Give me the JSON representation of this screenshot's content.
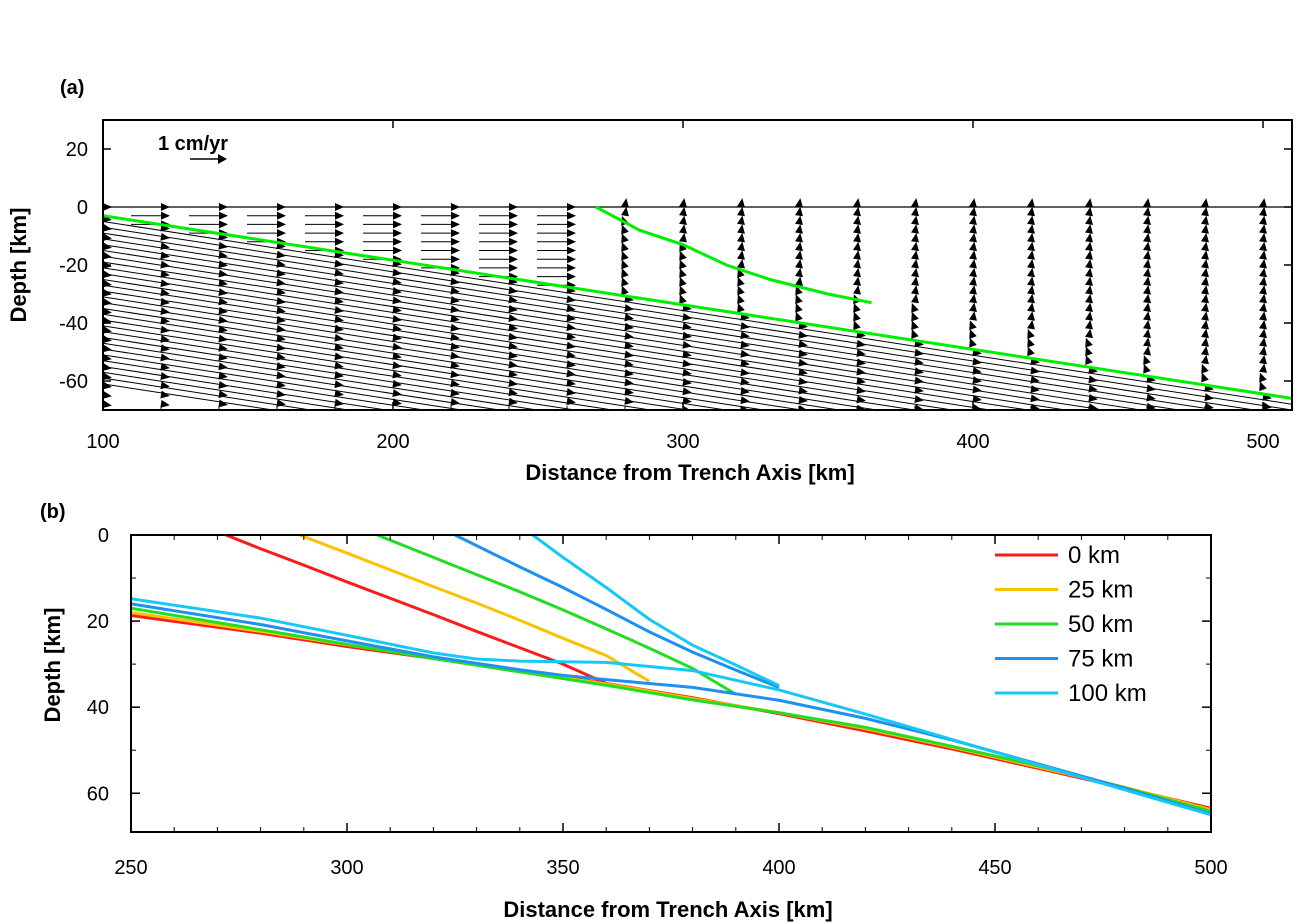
{
  "chart_data": [
    {
      "panel": "(a)",
      "type": "vector-field",
      "xlabel": "Distance from Trench Axis [km]",
      "ylabel": "Depth [km]",
      "xlim": [
        100,
        510
      ],
      "ylim": [
        -70,
        30
      ],
      "xticks": [
        100,
        200,
        300,
        400,
        500
      ],
      "yticks": [
        20,
        0,
        -20,
        -40,
        -60
      ],
      "grid": false,
      "reference_arrow": {
        "label": "1 cm/yr",
        "length_cm_per_yr": 1
      },
      "surface_line_depth": 0,
      "slab_surface": {
        "color": "#00ee00",
        "x": [
          100,
          510
        ],
        "y": [
          -3,
          -66
        ]
      },
      "wedge_boundary": {
        "color": "#00ee00",
        "x": [
          270,
          285,
          300,
          315,
          330,
          350,
          365
        ],
        "y": [
          0,
          -8,
          -13,
          -20,
          -25,
          -30,
          -33
        ]
      },
      "arrow_columns_x": [
        100,
        120,
        140,
        160,
        180,
        200,
        220,
        240,
        260,
        280,
        300,
        320,
        340,
        360,
        380,
        400,
        420,
        440,
        460,
        480,
        500
      ],
      "arrow_spacing_depth": 2
    },
    {
      "panel": "(b)",
      "type": "line",
      "xlabel": "Distance from Trench Axis [km]",
      "ylabel": "Depth [km]",
      "xlim": [
        250,
        500
      ],
      "ylim": [
        0,
        69
      ],
      "y_inverted": true,
      "xticks": [
        250,
        300,
        350,
        400,
        450,
        500
      ],
      "yticks": [
        0,
        20,
        40,
        60
      ],
      "grid": false,
      "legend_position": "top-right",
      "series": [
        {
          "name": "0 km",
          "color": "#ff1a1a",
          "x": [
            250,
            280,
            300,
            320,
            340,
            360,
            380,
            400,
            420,
            440,
            460,
            480,
            500
          ],
          "y": [
            18.7,
            22.8,
            25.9,
            28.7,
            31.6,
            34.5,
            37.8,
            41.5,
            45.5,
            49.7,
            54.2,
            58.8,
            63.5
          ],
          "branch_x": [
            272,
            280,
            290,
            300,
            310,
            320,
            330,
            340,
            350,
            360
          ],
          "branch_y": [
            0,
            3.2,
            7.0,
            10.9,
            14.7,
            18.5,
            22.4,
            26.2,
            30.0,
            34.5
          ]
        },
        {
          "name": "25 km",
          "color": "#ffc000",
          "x": [
            250,
            280,
            300,
            320,
            340,
            360,
            380,
            400,
            420,
            440,
            460,
            480,
            500
          ],
          "y": [
            18.0,
            22.4,
            25.5,
            28.6,
            31.7,
            34.6,
            38.0,
            41.3,
            45.0,
            49.3,
            53.9,
            58.6,
            63.8
          ],
          "branch_x": [
            289,
            300,
            310,
            320,
            330,
            340,
            350,
            360,
            370
          ],
          "branch_y": [
            0,
            4.2,
            8.1,
            12.0,
            15.8,
            19.8,
            24.0,
            28.0,
            34.0
          ]
        },
        {
          "name": "50 km",
          "color": "#22dd22",
          "x": [
            250,
            280,
            300,
            320,
            340,
            360,
            380,
            400,
            420,
            440,
            460,
            480,
            500
          ],
          "y": [
            17.0,
            22.0,
            25.4,
            28.7,
            31.8,
            34.9,
            38.3,
            41.3,
            44.7,
            49.1,
            53.6,
            58.7,
            64.2
          ],
          "branch_x": [
            307,
            320,
            330,
            340,
            350,
            360,
            370,
            380,
            390
          ],
          "branch_y": [
            0,
            5.2,
            9.2,
            13.2,
            17.4,
            21.8,
            26.3,
            31.0,
            37.0
          ]
        },
        {
          "name": "75 km",
          "color": "#1f8ff0",
          "x": [
            250,
            280,
            300,
            320,
            340,
            350,
            360,
            380,
            400,
            420,
            440,
            460,
            480,
            500
          ],
          "y": [
            16.0,
            20.8,
            24.6,
            28.3,
            31.3,
            32.6,
            33.6,
            35.4,
            38.4,
            42.6,
            47.6,
            53.2,
            58.8,
            64.8
          ],
          "branch_x": [
            325,
            340,
            350,
            360,
            370,
            380,
            390,
            400
          ],
          "branch_y": [
            0,
            7.4,
            12.2,
            17.3,
            22.5,
            27.2,
            31.4,
            35.4
          ]
        },
        {
          "name": "100 km",
          "color": "#16c8f4",
          "x": [
            250,
            280,
            300,
            320,
            330,
            340,
            360,
            380,
            400,
            420,
            440,
            460,
            480,
            500
          ],
          "y": [
            14.8,
            19.3,
            23.3,
            27.4,
            28.8,
            29.3,
            29.6,
            31.5,
            36.0,
            41.6,
            47.5,
            53.4,
            59.2,
            65.0
          ],
          "branch_x": [
            343,
            350,
            360,
            370,
            380,
            390,
            400
          ],
          "branch_y": [
            0,
            5.2,
            12.2,
            19.6,
            25.6,
            30.2,
            35.0
          ]
        }
      ]
    }
  ]
}
